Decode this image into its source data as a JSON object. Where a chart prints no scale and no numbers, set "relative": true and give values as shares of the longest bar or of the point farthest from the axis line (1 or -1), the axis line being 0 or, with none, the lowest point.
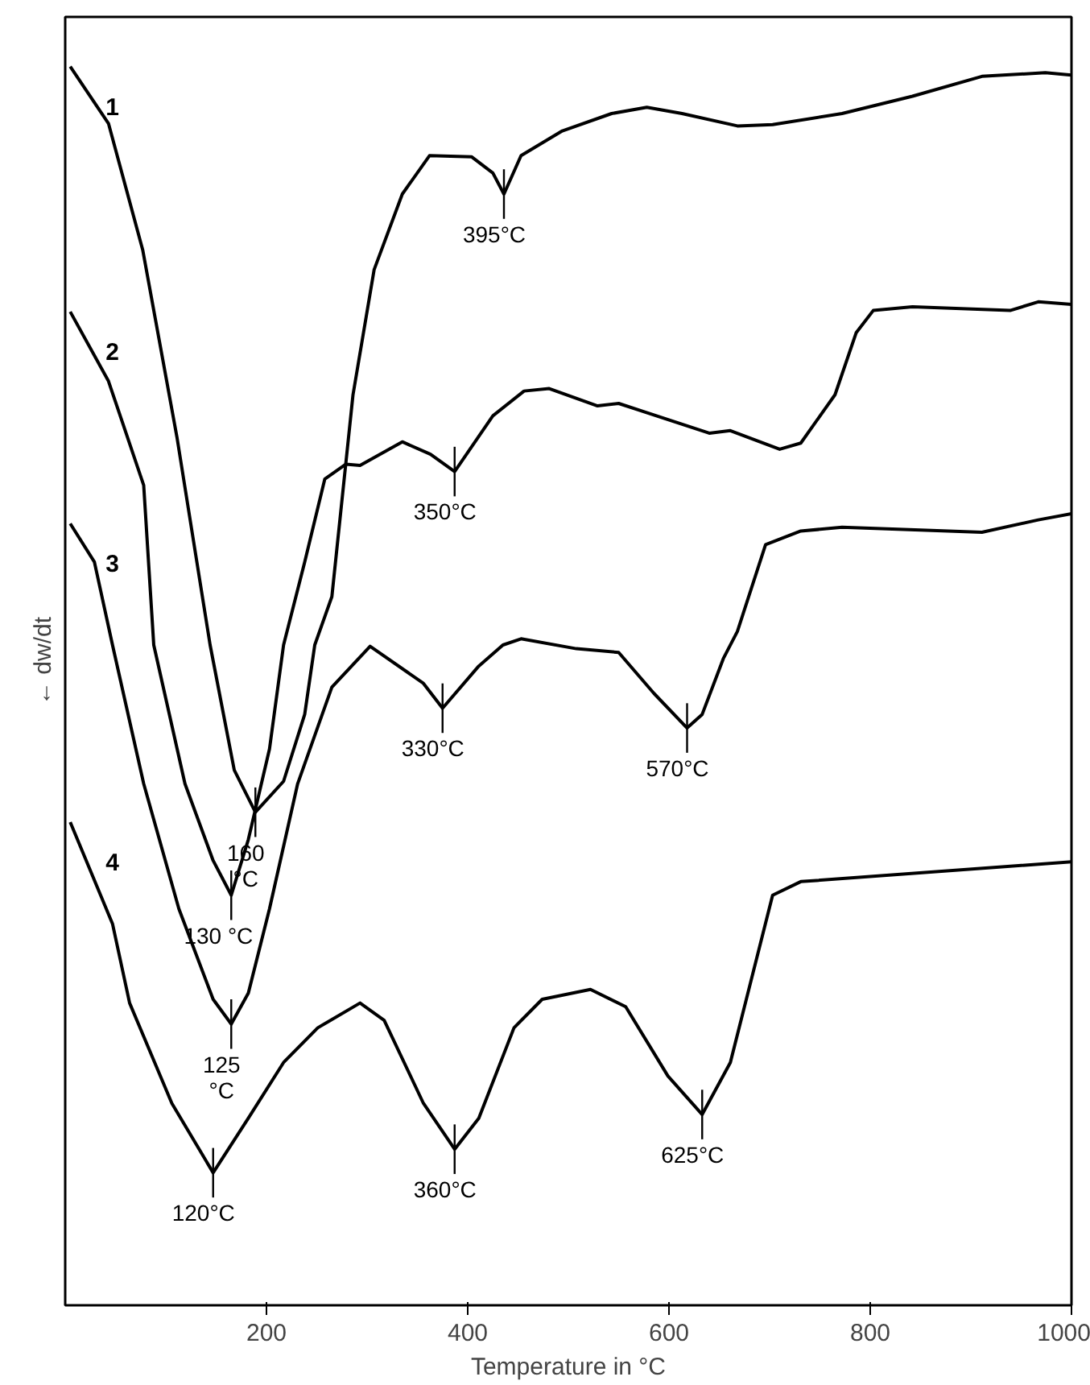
{
  "chart_data": {
    "type": "line",
    "relative": true,
    "xlabel": "Temperature in °C",
    "ylabel": "← dw/dt",
    "xlim": [
      0,
      1000
    ],
    "xticks": [
      200,
      400,
      600,
      800,
      1000
    ],
    "grid": false,
    "line_style": "solid",
    "series": [
      {
        "name": "1",
        "color": "#000000",
        "x": [
          5,
          43,
          77,
          111,
          144,
          168,
          189,
          217,
          238,
          248,
          265,
          286,
          307,
          335,
          362,
          404,
          425,
          436,
          453,
          494,
          543,
          578,
          613,
          668,
          703,
          772,
          842,
          911,
          974,
          1000
        ],
        "values": [
          1.0,
          0.954,
          0.852,
          0.701,
          0.533,
          0.432,
          0.398,
          0.423,
          0.477,
          0.533,
          0.572,
          0.735,
          0.836,
          0.897,
          0.928,
          0.927,
          0.914,
          0.897,
          0.928,
          0.948,
          0.962,
          0.967,
          0.962,
          0.952,
          0.953,
          0.962,
          0.976,
          0.992,
          0.995,
          0.993
        ]
      },
      {
        "name": "2",
        "color": "#000000",
        "x": [
          5,
          43,
          78,
          88,
          119,
          147,
          165,
          182,
          203,
          217,
          238,
          258,
          279,
          293,
          335,
          363,
          387,
          425,
          456,
          481,
          529,
          550,
          640,
          661,
          710,
          731,
          765,
          786,
          803,
          842,
          939,
          967,
          1000
        ],
        "values": [
          0.802,
          0.746,
          0.662,
          0.533,
          0.421,
          0.359,
          0.331,
          0.376,
          0.449,
          0.533,
          0.6,
          0.667,
          0.679,
          0.678,
          0.697,
          0.687,
          0.673,
          0.718,
          0.738,
          0.74,
          0.726,
          0.728,
          0.704,
          0.706,
          0.691,
          0.696,
          0.735,
          0.785,
          0.803,
          0.806,
          0.803,
          0.81,
          0.808
        ]
      },
      {
        "name": "3",
        "color": "#000000",
        "x": [
          5,
          29,
          47,
          78,
          113,
          147,
          165,
          182,
          203,
          231,
          265,
          303,
          356,
          375,
          411,
          435,
          453,
          508,
          550,
          585,
          618,
          633,
          654,
          668,
          696,
          731,
          772,
          911,
          967,
          1000
        ],
        "values": [
          0.631,
          0.6,
          0.533,
          0.421,
          0.32,
          0.247,
          0.227,
          0.252,
          0.32,
          0.421,
          0.499,
          0.532,
          0.502,
          0.482,
          0.516,
          0.533,
          0.538,
          0.53,
          0.527,
          0.494,
          0.466,
          0.477,
          0.522,
          0.544,
          0.614,
          0.625,
          0.628,
          0.624,
          0.634,
          0.639
        ]
      },
      {
        "name": "4",
        "color": "#000000",
        "x": [
          5,
          47,
          64,
          106,
          147,
          182,
          217,
          251,
          293,
          317,
          356,
          387,
          411,
          446,
          474,
          522,
          557,
          599,
          633,
          661,
          703,
          731,
          1000
        ],
        "values": [
          0.39,
          0.308,
          0.244,
          0.163,
          0.107,
          0.151,
          0.196,
          0.224,
          0.244,
          0.23,
          0.163,
          0.126,
          0.151,
          0.224,
          0.247,
          0.255,
          0.241,
          0.185,
          0.154,
          0.196,
          0.331,
          0.342,
          0.358
        ]
      }
    ],
    "annotations": [
      {
        "text": "395°C",
        "x": 436,
        "y": 0.897
      },
      {
        "text": "350°C",
        "x": 387,
        "y": 0.673
      },
      {
        "text": "330°C",
        "x": 375,
        "y": 0.482
      },
      {
        "text": "570°C",
        "x": 618,
        "y": 0.466
      },
      {
        "text": "160\n°C",
        "x": 189,
        "y": 0.398
      },
      {
        "text": "130  °C",
        "x": 165,
        "y": 0.331
      },
      {
        "text": "125\n°C",
        "x": 165,
        "y": 0.227
      },
      {
        "text": "120°C",
        "x": 147,
        "y": 0.107
      },
      {
        "text": "360°C",
        "x": 387,
        "y": 0.126
      },
      {
        "text": "625°C",
        "x": 633,
        "y": 0.154
      }
    ]
  }
}
